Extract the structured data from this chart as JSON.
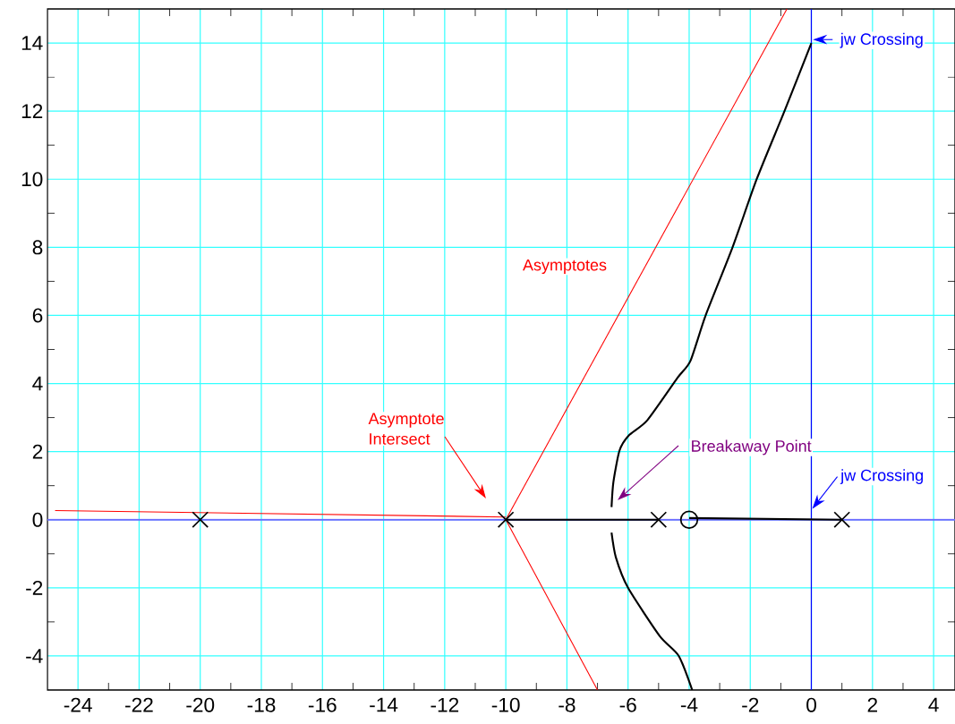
{
  "chart_data": {
    "type": "line",
    "xlim": [
      -25,
      4.7
    ],
    "ylim": [
      -5,
      15
    ],
    "xticks": [
      -24,
      -22,
      -20,
      -18,
      -16,
      -14,
      -12,
      -10,
      -8,
      -6,
      -4,
      -2,
      0,
      2,
      4
    ],
    "yticks": [
      -4,
      -2,
      0,
      2,
      4,
      6,
      8,
      10,
      12,
      14
    ],
    "grid": true,
    "series": [
      {
        "color": "#000000",
        "marker": "none",
        "x": [
          -6.54,
          -6.48,
          -6.28,
          -5.98,
          -5.37,
          -4.37,
          -3.96,
          -3.46,
          -2.58,
          -1.79,
          -0.88,
          0
        ],
        "values": [
          0.37,
          1.1,
          2.03,
          2.47,
          2.92,
          4.18,
          4.66,
          6,
          8,
          10,
          12,
          14
        ]
      },
      {
        "color": "#000000",
        "marker": "none",
        "x": [
          -6.54,
          -6.4,
          -6.0,
          -4.96,
          -4.34,
          -3.9
        ],
        "values": [
          -0.38,
          -1.1,
          -2,
          -3.42,
          -4,
          -5
        ]
      },
      {
        "color": "#000000",
        "marker": "none",
        "x": [
          -10,
          -5
        ],
        "values": [
          0,
          0
        ]
      },
      {
        "color": "#000000",
        "marker": "none",
        "x": [
          -4,
          1
        ],
        "values": [
          0.05,
          0
        ]
      },
      {
        "color": "#ff0000",
        "marker": "none",
        "x": [
          -24.75,
          -10
        ],
        "values": [
          0.27,
          0.08
        ]
      },
      {
        "color": "#ff0000",
        "marker": "none",
        "x": [
          -10,
          -0.8
        ],
        "values": [
          0,
          15
        ]
      },
      {
        "color": "#ff0000",
        "marker": "none",
        "x": [
          -10,
          -7
        ],
        "values": [
          0,
          -5
        ]
      },
      {
        "type": "scatter",
        "color": "#000000",
        "marker": "cross",
        "x": [
          -20,
          -10,
          -5,
          1
        ],
        "values": [
          0,
          0,
          0,
          0
        ]
      },
      {
        "type": "scatter",
        "color": "#000000",
        "marker": "circle",
        "x": [
          -4
        ],
        "values": [
          0
        ]
      }
    ],
    "ref_lines": [
      {
        "axis": "x",
        "value": 0,
        "color": "#0000ff"
      },
      {
        "axis": "y",
        "value": 0,
        "color": "#6b6bff"
      }
    ],
    "annotations": [
      "Asymptotes",
      "Asymptote Intersect",
      "Breakaway Point",
      {
        "text": "jw Crossing",
        "x": 0.05,
        "y": 14.1
      },
      {
        "text": "jw Crossing",
        "x": 0.03,
        "y": 0.32
      }
    ]
  }
}
